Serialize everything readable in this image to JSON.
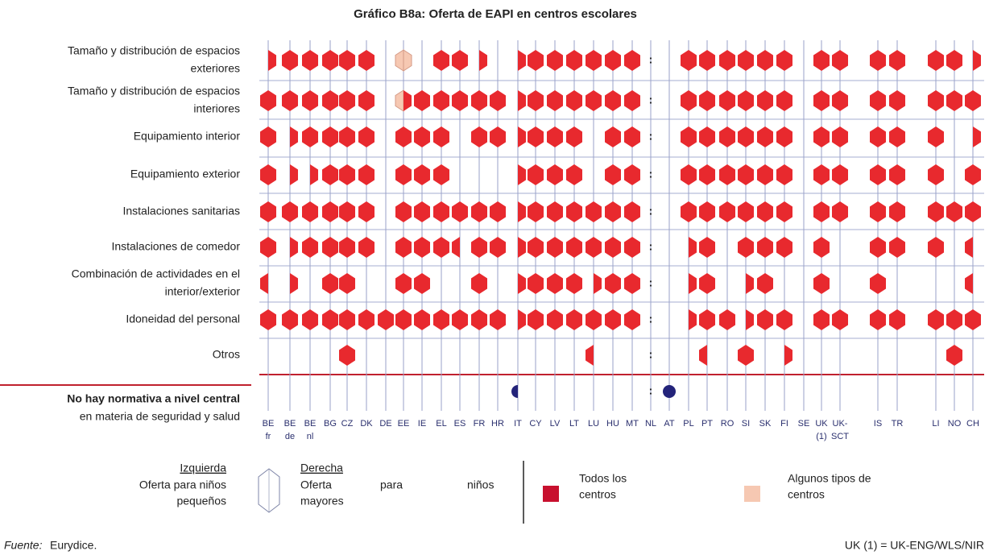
{
  "title": "Gráfico B8a: Oferta de EAPI en centros escolares",
  "columns": [
    [
      "BE",
      "fr"
    ],
    [
      "BE",
      "de"
    ],
    [
      "BE",
      "nl"
    ],
    [
      "BG"
    ],
    [
      "CZ"
    ],
    [
      "DK"
    ],
    [
      "DE"
    ],
    [
      "EE"
    ],
    [
      "IE"
    ],
    [
      "EL"
    ],
    [
      "ES"
    ],
    [
      "FR"
    ],
    [
      "HR"
    ],
    [
      "IT"
    ],
    [
      "CY"
    ],
    [
      "LV"
    ],
    [
      "LT"
    ],
    [
      "LU"
    ],
    [
      "HU"
    ],
    [
      "MT"
    ],
    [
      "NL"
    ],
    [
      "AT"
    ],
    [
      "PL"
    ],
    [
      "PT"
    ],
    [
      "RO"
    ],
    [
      "SI"
    ],
    [
      "SK"
    ],
    [
      "FI"
    ],
    [
      "SE"
    ],
    [
      "UK",
      "(1)"
    ],
    [
      "UK-",
      "SCT"
    ],
    [
      "IS"
    ],
    [
      "TR"
    ],
    [
      "LI"
    ],
    [
      "NO"
    ],
    [
      "CH"
    ]
  ],
  "rows": [
    {
      "label": [
        "Tamaño y distribución de espacios",
        "exteriores"
      ],
      "cells": [
        "R",
        "F",
        "F",
        "F",
        "F",
        "F",
        "N",
        "P",
        "N",
        "F",
        "F",
        "R",
        "N",
        "R",
        "F",
        "F",
        "F",
        "F",
        "F",
        "F",
        ":",
        "N",
        "F",
        "F",
        "F",
        "F",
        "F",
        "F",
        "N",
        "F",
        "F",
        "F",
        "F",
        "F",
        "F",
        "R"
      ]
    },
    {
      "label": [
        "Tamaño y distribución de espacios",
        "interiores"
      ],
      "cells": [
        "F",
        "F",
        "F",
        "F",
        "F",
        "F",
        "N",
        "Q",
        "F",
        "F",
        "F",
        "F",
        "F",
        "R",
        "F",
        "F",
        "F",
        "F",
        "F",
        "F",
        ":",
        "N",
        "F",
        "F",
        "F",
        "F",
        "F",
        "F",
        "N",
        "F",
        "F",
        "F",
        "F",
        "F",
        "F",
        "F"
      ]
    },
    {
      "label": [
        "Equipamiento interior"
      ],
      "cells": [
        "F",
        "R",
        "F",
        "F",
        "F",
        "F",
        "N",
        "F",
        "F",
        "F",
        "N",
        "F",
        "F",
        "R",
        "F",
        "F",
        "F",
        "N",
        "F",
        "F",
        ":",
        "N",
        "F",
        "F",
        "F",
        "F",
        "F",
        "F",
        "N",
        "F",
        "F",
        "F",
        "F",
        "F",
        "N",
        "R"
      ]
    },
    {
      "label": [
        "Equipamiento exterior"
      ],
      "cells": [
        "F",
        "R",
        "R",
        "F",
        "F",
        "F",
        "N",
        "F",
        "F",
        "F",
        "N",
        "N",
        "N",
        "R",
        "F",
        "F",
        "F",
        "N",
        "F",
        "F",
        ":",
        "N",
        "F",
        "F",
        "F",
        "F",
        "F",
        "F",
        "N",
        "F",
        "F",
        "F",
        "F",
        "F",
        "N",
        "F"
      ]
    },
    {
      "label": [
        "Instalaciones sanitarias"
      ],
      "cells": [
        "F",
        "F",
        "F",
        "F",
        "F",
        "F",
        "N",
        "F",
        "F",
        "F",
        "F",
        "F",
        "F",
        "R",
        "F",
        "F",
        "F",
        "F",
        "F",
        "F",
        ":",
        "N",
        "F",
        "F",
        "F",
        "F",
        "F",
        "F",
        "N",
        "F",
        "F",
        "F",
        "F",
        "F",
        "F",
        "F"
      ]
    },
    {
      "label": [
        "Instalaciones de comedor"
      ],
      "cells": [
        "F",
        "R",
        "F",
        "F",
        "F",
        "F",
        "N",
        "F",
        "F",
        "F",
        "L",
        "F",
        "F",
        "R",
        "F",
        "F",
        "F",
        "F",
        "F",
        "F",
        ":",
        "N",
        "R",
        "F",
        "N",
        "F",
        "F",
        "F",
        "N",
        "F",
        "N",
        "F",
        "F",
        "F",
        "N",
        "L"
      ]
    },
    {
      "label": [
        "Combinación de actividades en el",
        "interior/exterior"
      ],
      "cells": [
        "L",
        "R",
        "N",
        "F",
        "F",
        "N",
        "N",
        "F",
        "F",
        "N",
        "N",
        "F",
        "N",
        "R",
        "F",
        "F",
        "F",
        "R",
        "F",
        "F",
        ":",
        "N",
        "R",
        "F",
        "N",
        "R",
        "F",
        "N",
        "N",
        "F",
        "N",
        "F",
        "N",
        "N",
        "N",
        "L"
      ]
    },
    {
      "label": [
        "Idoneidad del personal"
      ],
      "cells": [
        "F",
        "F",
        "F",
        "F",
        "F",
        "F",
        "F",
        "F",
        "F",
        "F",
        "F",
        "F",
        "F",
        "R",
        "F",
        "F",
        "F",
        "F",
        "F",
        "F",
        ":",
        "N",
        "R",
        "F",
        "F",
        "R",
        "F",
        "F",
        "N",
        "F",
        "F",
        "F",
        "F",
        "F",
        "F",
        "F"
      ]
    },
    {
      "label": [
        "Otros"
      ],
      "cells": [
        "N",
        "N",
        "N",
        "N",
        "F",
        "N",
        "N",
        "N",
        "N",
        "N",
        "N",
        "N",
        "N",
        "N",
        "N",
        "N",
        "N",
        "L",
        "N",
        "N",
        ":",
        "N",
        "N",
        "L",
        "N",
        "F",
        "N",
        "R",
        "N",
        "N",
        "N",
        "N",
        "N",
        "N",
        "F",
        "N"
      ]
    }
  ],
  "no_rule": {
    "label_bold": "No hay normativa a nivel central",
    "label": "en materia de seguridad y salud",
    "cells": [
      "N",
      "N",
      "N",
      "N",
      "N",
      "N",
      "N",
      "N",
      "N",
      "N",
      "N",
      "N",
      "N",
      "L",
      "N",
      "N",
      "N",
      "N",
      "N",
      "N",
      ":",
      "F",
      "N",
      "N",
      "N",
      "N",
      "N",
      "N",
      "N",
      "N",
      "N",
      "N",
      "N",
      "N",
      "N",
      "N"
    ]
  },
  "na_mark": ":",
  "colors": {
    "all": "#e8292e",
    "some": "#f6c8b2",
    "dot": "#23237a"
  },
  "legend": {
    "left_title": "Izquierda",
    "left_text": [
      "Oferta para niños",
      "pequeños"
    ],
    "right_title": "Derecha",
    "right_text": [
      "Oferta",
      "para",
      "niños",
      "mayores"
    ],
    "all": [
      "Todos los",
      "centros"
    ],
    "some": [
      "Algunos tipos de",
      "centros"
    ]
  },
  "source_label": "Fuente:",
  "source": "Eurydice.",
  "note": "UK (1) = UK-ENG/WLS/NIR"
}
